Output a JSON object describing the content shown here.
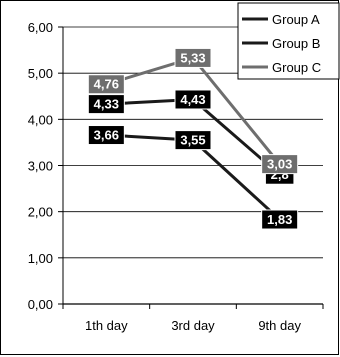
{
  "chart_data": {
    "type": "line",
    "categories": [
      "1th day",
      "3rd day",
      "9th day"
    ],
    "ylim": [
      0,
      6
    ],
    "yticks": [
      "0,00",
      "1,00",
      "2,00",
      "3,00",
      "4,00",
      "5,00",
      "6,00"
    ],
    "grid": true,
    "legend": "top-right",
    "series": [
      {
        "name": "Group A",
        "values": [
          3.66,
          3.55,
          1.83
        ],
        "labels": [
          "3,66",
          "3,55",
          "1,83"
        ],
        "color": "#1a1a1a",
        "label_bg": "#000000"
      },
      {
        "name": "Group B",
        "values": [
          4.33,
          4.43,
          2.8
        ],
        "labels": [
          "4,33",
          "4,43",
          "2,8"
        ],
        "color": "#1a1a1a",
        "label_bg": "#000000"
      },
      {
        "name": "Group C",
        "values": [
          4.76,
          5.33,
          3.03
        ],
        "labels": [
          "4,76",
          "5,33",
          "3,03"
        ],
        "color": "#6e6e6e",
        "label_bg": "#6e6e6e"
      }
    ]
  }
}
